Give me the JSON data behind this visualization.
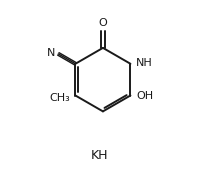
{
  "background_color": "#ffffff",
  "line_color": "#1a1a1a",
  "line_width": 1.4,
  "font_size_labels": 8.0,
  "font_size_kh": 9.0,
  "figsize": [
    1.99,
    1.73
  ],
  "dpi": 100,
  "label_O": "O",
  "label_NH": "NH",
  "label_OH": "OH",
  "label_CH3": "CH₃",
  "label_KH": "KH",
  "label_CN_N": "N"
}
